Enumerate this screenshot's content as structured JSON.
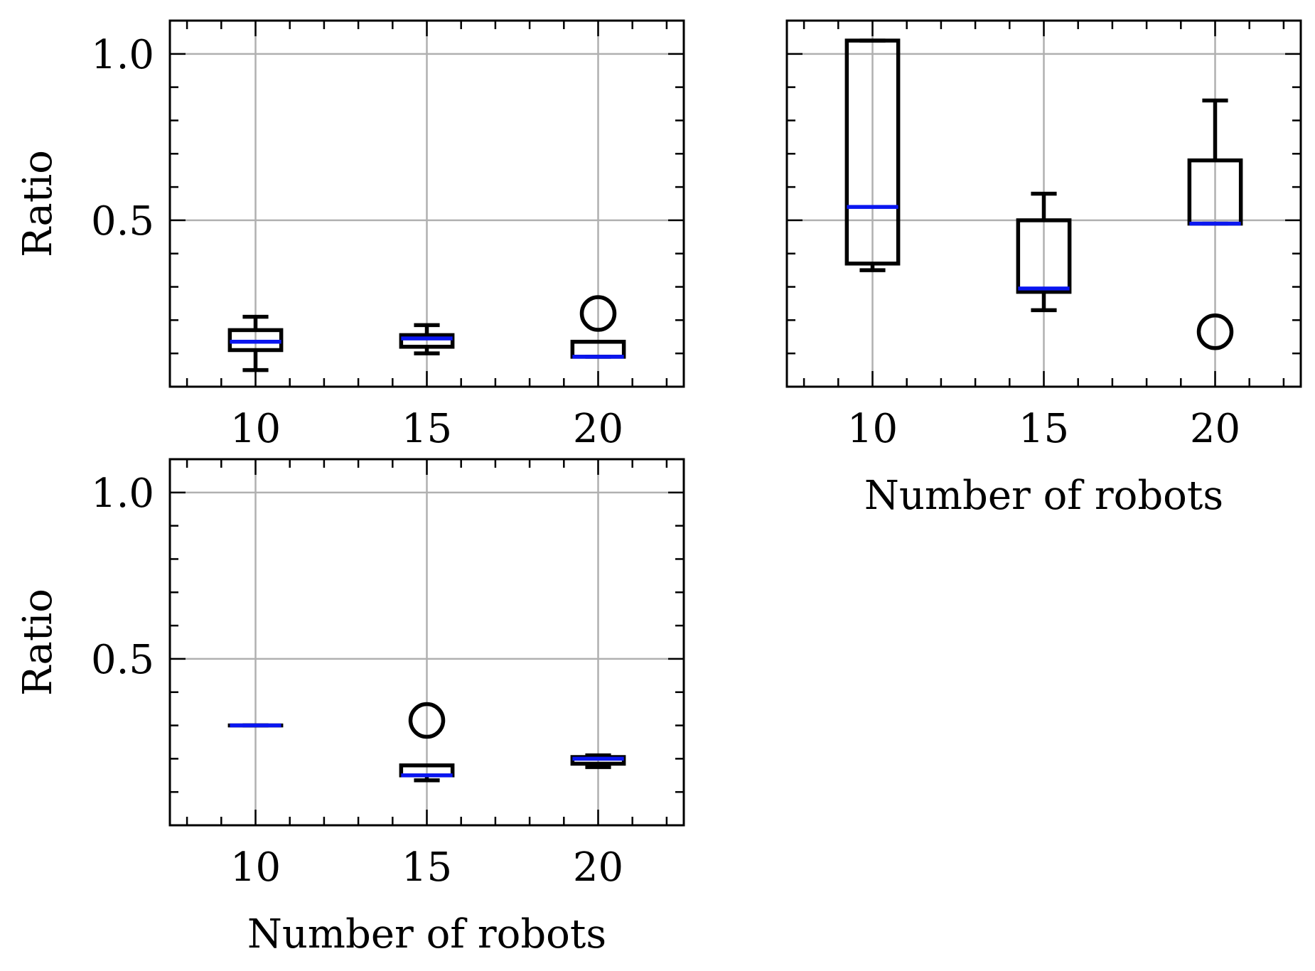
{
  "chart_data": [
    {
      "type": "box",
      "panel": "top-left",
      "categories": [
        "10",
        "15",
        "20"
      ],
      "ylabel": "Ratio",
      "xlabel": "",
      "ylim": [
        0.0,
        1.1
      ],
      "yticks": [
        "1.0",
        "0.5"
      ],
      "grid": true,
      "boxes": [
        {
          "category": "10",
          "whisker_low": 0.05,
          "q1": 0.11,
          "median": 0.135,
          "q3": 0.17,
          "whisker_high": 0.21,
          "outliers": []
        },
        {
          "category": "15",
          "whisker_low": 0.1,
          "q1": 0.12,
          "median": 0.145,
          "q3": 0.155,
          "whisker_high": 0.185,
          "outliers": []
        },
        {
          "category": "20",
          "whisker_low": 0.09,
          "q1": 0.09,
          "median": 0.09,
          "q3": 0.135,
          "whisker_high": 0.135,
          "outliers": [
            0.22
          ]
        }
      ]
    },
    {
      "type": "box",
      "panel": "top-right",
      "categories": [
        "10",
        "15",
        "20"
      ],
      "ylabel": "",
      "xlabel": "Number of robots",
      "ylim": [
        0.0,
        1.1
      ],
      "yticks": [],
      "grid": true,
      "boxes": [
        {
          "category": "10",
          "whisker_low": 0.35,
          "q1": 0.37,
          "median": 0.54,
          "q3": 1.04,
          "whisker_high": 1.04,
          "outliers": []
        },
        {
          "category": "15",
          "whisker_low": 0.23,
          "q1": 0.285,
          "median": 0.295,
          "q3": 0.5,
          "whisker_high": 0.58,
          "outliers": []
        },
        {
          "category": "20",
          "whisker_low": 0.49,
          "q1": 0.49,
          "median": 0.49,
          "q3": 0.68,
          "whisker_high": 0.86,
          "outliers": [
            0.165
          ]
        }
      ]
    },
    {
      "type": "box",
      "panel": "bottom-left",
      "categories": [
        "10",
        "15",
        "20"
      ],
      "ylabel": "Ratio",
      "xlabel": "Number of robots",
      "ylim": [
        0.0,
        1.1
      ],
      "yticks": [
        "1.0",
        "0.5"
      ],
      "grid": true,
      "boxes": [
        {
          "category": "10",
          "whisker_low": 0.3,
          "q1": 0.3,
          "median": 0.3,
          "q3": 0.3,
          "whisker_high": 0.3,
          "outliers": []
        },
        {
          "category": "15",
          "whisker_low": 0.135,
          "q1": 0.15,
          "median": 0.15,
          "q3": 0.18,
          "whisker_high": 0.18,
          "outliers": [
            0.315
          ]
        },
        {
          "category": "20",
          "whisker_low": 0.175,
          "q1": 0.185,
          "median": 0.2,
          "q3": 0.205,
          "whisker_high": 0.21,
          "outliers": []
        }
      ]
    }
  ],
  "colors": {
    "box": "#000000",
    "median": "#0a16f0",
    "grid": "#b0b0b0",
    "axes": "#000000"
  }
}
